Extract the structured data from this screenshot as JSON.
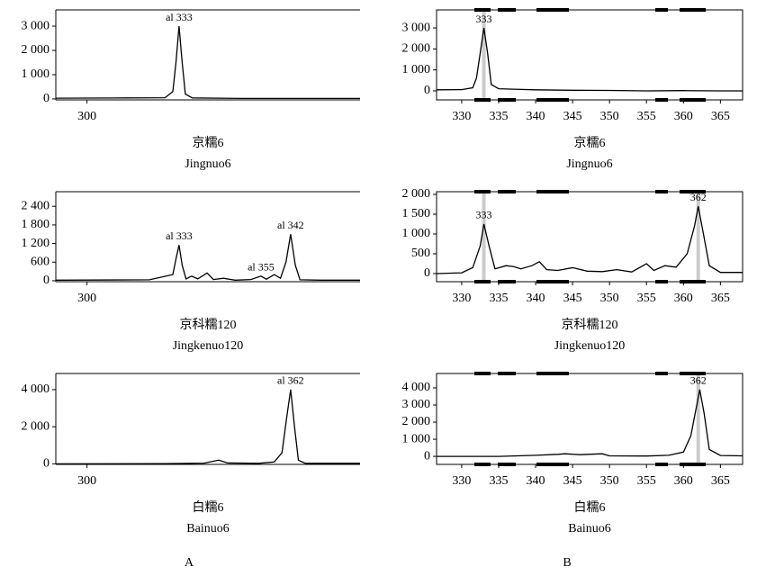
{
  "panel_labels": [
    "A",
    "B"
  ],
  "chart_data": [
    {
      "type": "line",
      "caption": [
        "京糯6",
        "Jingnuo6"
      ],
      "color": "#000000",
      "x": [
        296,
        305,
        310,
        311,
        311.4,
        311.8,
        312.2,
        312.6,
        313.5,
        320,
        335
      ],
      "values": [
        30,
        40,
        50,
        300,
        1500,
        3000,
        1500,
        200,
        40,
        20,
        20
      ],
      "xlim": [
        296,
        335
      ],
      "xticks": [
        300
      ],
      "ylim": [
        -40,
        3670
      ],
      "yticks": [
        {
          "value": 0,
          "label": "0"
        },
        {
          "value": 1000,
          "label": "1 000"
        },
        {
          "value": 2000,
          "label": "2 000"
        },
        {
          "value": 3000,
          "label": "3 000"
        }
      ],
      "annotations": [
        {
          "text": "al 333",
          "x": 311.8,
          "y": 3000
        }
      ]
    },
    {
      "type": "line",
      "caption": [
        "京科糯120",
        "Jingkenuo120"
      ],
      "color": "#000000",
      "x": [
        296,
        308,
        311,
        311.4,
        311.8,
        312.2,
        312.7,
        313.4,
        314.2,
        315.4,
        316.2,
        317.5,
        319,
        321,
        322.3,
        323,
        324,
        324.8,
        325.5,
        326.1,
        326.7,
        327.3,
        330,
        335
      ],
      "values": [
        20,
        30,
        200,
        700,
        1150,
        500,
        60,
        150,
        60,
        250,
        40,
        80,
        20,
        40,
        150,
        50,
        200,
        80,
        600,
        1500,
        500,
        30,
        20,
        20
      ],
      "xlim": [
        296,
        335
      ],
      "xticks": [
        300
      ],
      "ylim": [
        -30,
        2870
      ],
      "yticks": [
        0,
        600,
        {
          "value": 1200,
          "label": "1 200"
        },
        {
          "value": 1800,
          "label": "1 800"
        },
        {
          "value": 2400,
          "label": "2 400"
        }
      ],
      "annotations": [
        {
          "text": "al 333",
          "x": 311.8,
          "y": 1150
        },
        {
          "text": "al 355",
          "x": 322.3,
          "y": 150
        },
        {
          "text": "al 342",
          "x": 326.1,
          "y": 1500
        }
      ]
    },
    {
      "type": "line",
      "caption": [
        "白糯6",
        "Bainuo6"
      ],
      "color": "#000000",
      "x": [
        296,
        310,
        315,
        316.9,
        318,
        322,
        324,
        325,
        325.6,
        326.1,
        326.6,
        327.1,
        328,
        335
      ],
      "values": [
        0,
        10,
        40,
        200,
        50,
        30,
        100,
        600,
        2500,
        4000,
        2000,
        200,
        30,
        30
      ],
      "xlim": [
        296,
        335
      ],
      "xticks": [
        300
      ],
      "ylim": [
        -30,
        4870
      ],
      "yticks": [
        0,
        {
          "value": 2000,
          "label": "2 000"
        },
        {
          "value": 4000,
          "label": "4 000"
        }
      ],
      "annotations": [
        {
          "text": "al 362",
          "x": 326.1,
          "y": 4000
        }
      ]
    },
    {
      "type": "line",
      "caption": [
        "京糯6",
        "Jingnuo6"
      ],
      "color": "#000000",
      "peak_highlight": true,
      "x": [
        326.6,
        330,
        331.5,
        332,
        332.5,
        333,
        333.5,
        334,
        335,
        337,
        340,
        345,
        350,
        355,
        360,
        365,
        368
      ],
      "values": [
        50,
        60,
        150,
        600,
        1800,
        3000,
        1800,
        300,
        100,
        80,
        50,
        30,
        20,
        0,
        10,
        0,
        0
      ],
      "xlim": [
        326.6,
        368
      ],
      "xticks": [
        330,
        335,
        340,
        345,
        350,
        355,
        360,
        365
      ],
      "ylim": [
        -430,
        3860
      ],
      "yticks": [
        0,
        {
          "value": 1000,
          "label": "1 000"
        },
        {
          "value": 2000,
          "label": "2 000"
        },
        {
          "value": 3000,
          "label": "3 000"
        }
      ],
      "annotations": [
        {
          "text": "333",
          "x": 333,
          "y": 3000
        }
      ]
    },
    {
      "type": "line",
      "caption": [
        "京科糯120",
        "Jingkenuo120"
      ],
      "color": "#000000",
      "peak_highlight": true,
      "x": [
        326.6,
        330,
        331.5,
        332.5,
        333,
        333.7,
        334.5,
        336,
        337,
        338,
        339.5,
        340.5,
        341.5,
        343,
        345,
        347,
        349,
        351,
        353,
        355,
        356,
        357.5,
        359,
        360.5,
        361.5,
        362,
        362.7,
        363.5,
        365,
        368
      ],
      "values": [
        0,
        20,
        150,
        700,
        1250,
        700,
        120,
        200,
        180,
        120,
        200,
        300,
        100,
        80,
        150,
        60,
        50,
        100,
        40,
        250,
        80,
        200,
        160,
        500,
        1200,
        1700,
        1000,
        200,
        30,
        30
      ],
      "xlim": [
        326.6,
        368
      ],
      "xticks": [
        330,
        335,
        340,
        345,
        350,
        355,
        360,
        365
      ],
      "ylim": [
        -205,
        2068
      ],
      "yticks": [
        0,
        500,
        {
          "value": 1000,
          "label": "1 000"
        },
        {
          "value": 1500,
          "label": "1 500"
        },
        {
          "value": 2000,
          "label": "2 000"
        }
      ],
      "annotations": [
        {
          "text": "333",
          "x": 333,
          "y": 1250
        },
        {
          "text": "362",
          "x": 362,
          "y": 1700
        }
      ]
    },
    {
      "type": "line",
      "caption": [
        "白糯6",
        "Bainuo6"
      ],
      "color": "#000000",
      "peak_highlight": true,
      "x": [
        326.6,
        335,
        340,
        343,
        344,
        346,
        349,
        350,
        355,
        358,
        360,
        361,
        361.8,
        362.2,
        362.8,
        363.5,
        365,
        368
      ],
      "values": [
        0,
        0,
        60,
        120,
        150,
        100,
        150,
        30,
        20,
        60,
        250,
        1200,
        3000,
        3900,
        2500,
        400,
        50,
        30
      ],
      "xlim": [
        326.6,
        368
      ],
      "xticks": [
        330,
        335,
        340,
        345,
        350,
        355,
        360,
        365
      ],
      "ylim": [
        -470,
        4840
      ],
      "yticks": [
        0,
        {
          "value": 1000,
          "label": "1 000"
        },
        {
          "value": 2000,
          "label": "2 000"
        },
        {
          "value": 3000,
          "label": "3 000"
        },
        {
          "value": 4000,
          "label": "4 000"
        }
      ],
      "annotations": [
        {
          "text": "362",
          "x": 362,
          "y": 3900
        }
      ]
    }
  ]
}
